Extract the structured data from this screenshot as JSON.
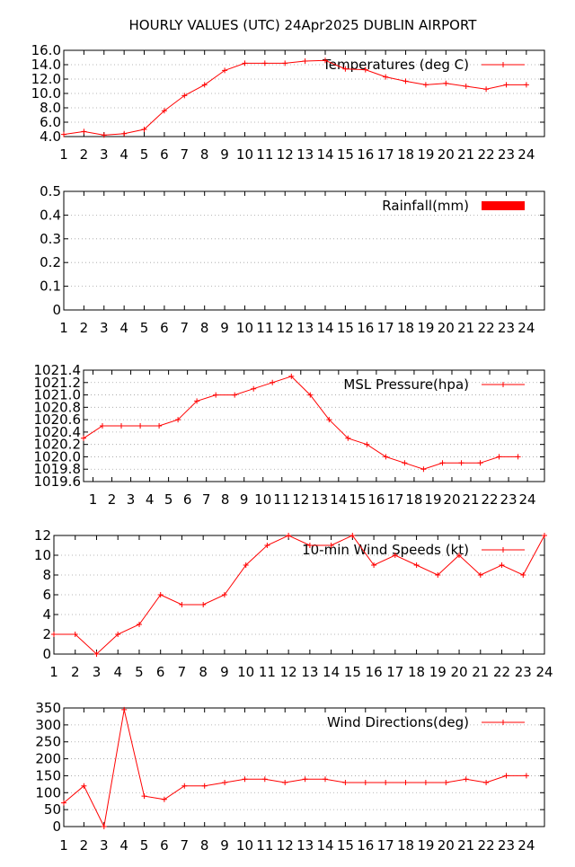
{
  "title": "HOURLY VALUES (UTC) 24Apr2025   DUBLIN AIRPORT",
  "colors": {
    "series": "#ff0000",
    "grid": "#a0a0a0",
    "axis": "#000000"
  },
  "chart_data": [
    {
      "type": "line",
      "legend": "Temperatures (deg C)",
      "legend_position": "top-right",
      "grid": true,
      "xlim": [
        1,
        24.9
      ],
      "ylim": [
        4.0,
        16.0
      ],
      "yticks": [
        "4.0",
        "6.0",
        "8.0",
        "10.0",
        "12.0",
        "14.0",
        "16.0"
      ],
      "xticks": [
        "1",
        "2",
        "3",
        "4",
        "5",
        "6",
        "7",
        "8",
        "9",
        "10",
        "11",
        "12",
        "13",
        "14",
        "15",
        "16",
        "17",
        "18",
        "19",
        "20",
        "21",
        "22",
        "23",
        "24"
      ],
      "x": [
        1,
        2,
        3,
        4,
        5,
        6,
        7,
        8,
        9,
        10,
        11,
        12,
        13,
        14,
        15,
        16,
        17,
        18,
        19,
        20,
        21,
        22,
        23,
        24
      ],
      "values": [
        4.3,
        4.7,
        4.2,
        4.4,
        5.0,
        7.6,
        9.7,
        11.2,
        13.2,
        14.2,
        14.2,
        14.2,
        14.5,
        14.6,
        13.4,
        13.3,
        12.3,
        11.7,
        11.2,
        11.4,
        11.0,
        10.6,
        11.2,
        11.2
      ]
    },
    {
      "type": "bar",
      "legend": "Rainfall(mm)",
      "legend_position": "top-right",
      "grid": true,
      "xlim": [
        1,
        24.9
      ],
      "ylim": [
        0,
        0.5
      ],
      "yticks": [
        "0",
        "0.1",
        "0.2",
        "0.3",
        "0.4",
        "0.5"
      ],
      "xticks": [
        "1",
        "2",
        "3",
        "4",
        "5",
        "6",
        "7",
        "8",
        "9",
        "10",
        "11",
        "12",
        "13",
        "14",
        "15",
        "16",
        "17",
        "18",
        "19",
        "20",
        "21",
        "22",
        "23",
        "24"
      ],
      "x": [
        1,
        2,
        3,
        4,
        5,
        6,
        7,
        8,
        9,
        10,
        11,
        12,
        13,
        14,
        15,
        16,
        17,
        18,
        19,
        20,
        21,
        22,
        23,
        24
      ],
      "values": [
        0,
        0,
        0,
        0,
        0,
        0,
        0,
        0,
        0,
        0,
        0,
        0,
        0,
        0,
        0,
        0,
        0,
        0,
        0,
        0,
        0,
        0,
        0,
        0
      ]
    },
    {
      "type": "line",
      "legend": "MSL Pressure(hpa)",
      "legend_position": "top-right",
      "grid": true,
      "xlim": [
        0.5,
        24.9
      ],
      "ylim": [
        1019.6,
        1021.4
      ],
      "yticks": [
        "1019.6",
        "1019.8",
        "1020.0",
        "1020.2",
        "1020.4",
        "1020.6",
        "1020.8",
        "1021.0",
        "1021.2",
        "1021.4"
      ],
      "xticks": [
        "1",
        "2",
        "3",
        "4",
        "5",
        "6",
        "7",
        "8",
        "9",
        "10",
        "11",
        "12",
        "13",
        "14",
        "15",
        "16",
        "17",
        "18",
        "19",
        "20",
        "21",
        "22",
        "23",
        "24"
      ],
      "x": [
        0.5,
        1.5,
        2.5,
        3.5,
        4.5,
        5.5,
        6.5,
        7.5,
        8.5,
        9.5,
        10.5,
        11.5,
        12.5,
        13.5,
        14.5,
        15.5,
        16.5,
        17.5,
        18.5,
        19.5,
        20.5,
        21.5,
        22.5,
        23.5
      ],
      "values": [
        1020.3,
        1020.5,
        1020.5,
        1020.5,
        1020.5,
        1020.6,
        1020.9,
        1021.0,
        1021.0,
        1021.1,
        1021.2,
        1021.3,
        1021.0,
        1020.6,
        1020.3,
        1020.2,
        1020.0,
        1019.9,
        1019.8,
        1019.9,
        1019.9,
        1019.9,
        1020.0,
        1020.0
      ]
    },
    {
      "type": "line",
      "legend": "10-min Wind Speeds (kt)",
      "legend_position": "top-right",
      "grid": true,
      "xlim": [
        1,
        24
      ],
      "ylim": [
        0,
        12
      ],
      "yticks": [
        "0",
        "2",
        "4",
        "6",
        "8",
        "10",
        "12"
      ],
      "xticks": [
        "1",
        "2",
        "3",
        "4",
        "5",
        "6",
        "7",
        "8",
        "9",
        "10",
        "11",
        "12",
        "13",
        "14",
        "15",
        "16",
        "17",
        "18",
        "19",
        "20",
        "21",
        "22",
        "23",
        "24"
      ],
      "x": [
        1,
        2,
        3,
        4,
        5,
        6,
        7,
        8,
        9,
        10,
        11,
        12,
        13,
        14,
        15,
        16,
        17,
        18,
        19,
        20,
        21,
        22,
        23,
        24
      ],
      "values": [
        2,
        2,
        0,
        2,
        3,
        6,
        5,
        5,
        6,
        9,
        11,
        12,
        11,
        11,
        12,
        9,
        10,
        9,
        8,
        10,
        8,
        9,
        8,
        12
      ]
    },
    {
      "type": "line",
      "legend": "Wind Directions(deg)",
      "legend_position": "top-right",
      "grid": true,
      "xlim": [
        1,
        24.9
      ],
      "ylim": [
        0,
        350
      ],
      "yticks": [
        "0",
        "50",
        "100",
        "150",
        "200",
        "250",
        "300",
        "350"
      ],
      "xticks": [
        "1",
        "2",
        "3",
        "4",
        "5",
        "6",
        "7",
        "8",
        "9",
        "10",
        "11",
        "12",
        "13",
        "14",
        "15",
        "16",
        "17",
        "18",
        "19",
        "20",
        "21",
        "22",
        "23",
        "24"
      ],
      "x": [
        1,
        2,
        3,
        4,
        5,
        6,
        7,
        8,
        9,
        10,
        11,
        12,
        13,
        14,
        15,
        16,
        17,
        18,
        19,
        20,
        21,
        22,
        23,
        24
      ],
      "values": [
        70,
        120,
        0,
        345,
        90,
        80,
        120,
        120,
        130,
        140,
        140,
        130,
        140,
        140,
        130,
        130,
        130,
        130,
        130,
        130,
        140,
        130,
        150,
        150
      ]
    }
  ]
}
